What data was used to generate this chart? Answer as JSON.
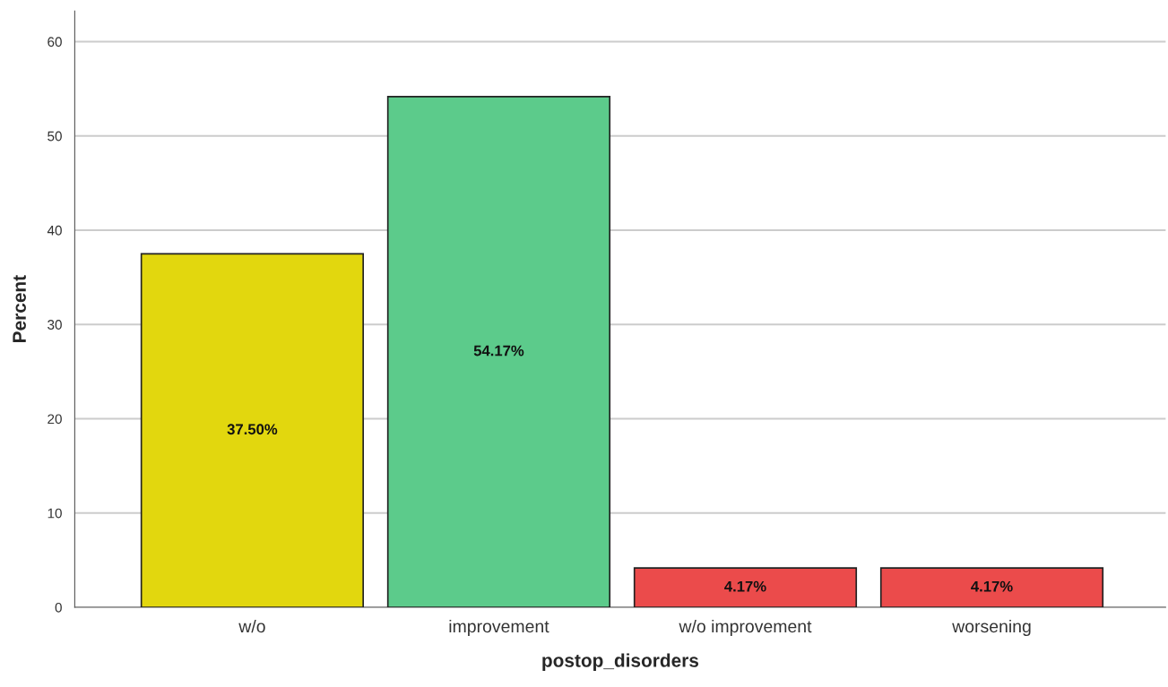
{
  "chart_data": {
    "type": "bar",
    "xlabel": "postop_disorders",
    "ylabel": "Percent",
    "categories": [
      "w/o",
      "improvement",
      "w/o improvement",
      "worsening"
    ],
    "values": [
      37.5,
      54.17,
      4.17,
      4.17
    ],
    "colors": [
      "#e2d70e",
      "#5ccb8b",
      "#eb4b4b",
      "#eb4b4b"
    ],
    "value_labels": [
      "37.50%",
      "54.17%",
      "4.17%",
      "4.17%"
    ],
    "ylim": [
      0,
      63.25
    ],
    "yticks": [
      0,
      10,
      20,
      30,
      40,
      50,
      60
    ],
    "grid": "y"
  }
}
